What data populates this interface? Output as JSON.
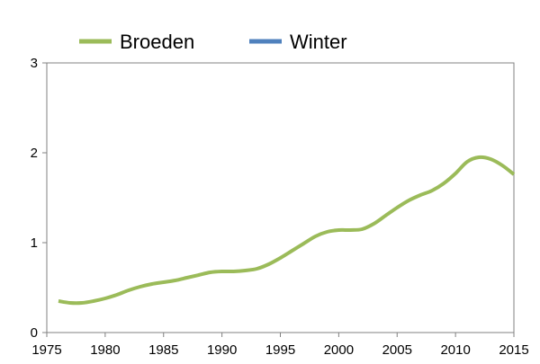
{
  "chart_data": {
    "type": "line",
    "title": "",
    "xlabel": "",
    "ylabel": "",
    "xlim": [
      1975,
      2015
    ],
    "ylim": [
      0,
      3
    ],
    "x_ticks": [
      1975,
      1980,
      1985,
      1990,
      1995,
      2000,
      2005,
      2010,
      2015
    ],
    "y_ticks": [
      0,
      1,
      2,
      3
    ],
    "grid": false,
    "legend_position": "top",
    "series": [
      {
        "name": "Broeden",
        "color": "#9BBB59",
        "x": [
          1976,
          1977,
          1978,
          1979,
          1980,
          1981,
          1982,
          1983,
          1984,
          1985,
          1986,
          1987,
          1988,
          1989,
          1990,
          1991,
          1992,
          1993,
          1994,
          1995,
          1996,
          1997,
          1998,
          1999,
          2000,
          2001,
          2002,
          2003,
          2004,
          2005,
          2006,
          2007,
          2008,
          2009,
          2010,
          2011,
          2012,
          2013,
          2014,
          2015
        ],
        "y": [
          0.35,
          0.33,
          0.33,
          0.35,
          0.38,
          0.42,
          0.47,
          0.51,
          0.54,
          0.56,
          0.58,
          0.61,
          0.64,
          0.67,
          0.68,
          0.68,
          0.69,
          0.71,
          0.76,
          0.83,
          0.91,
          0.99,
          1.07,
          1.12,
          1.14,
          1.14,
          1.15,
          1.21,
          1.3,
          1.39,
          1.47,
          1.53,
          1.58,
          1.66,
          1.77,
          1.9,
          1.95,
          1.93,
          1.86,
          1.76
        ]
      },
      {
        "name": "Winter",
        "color": "#4F81BD",
        "x": [],
        "y": []
      }
    ]
  }
}
